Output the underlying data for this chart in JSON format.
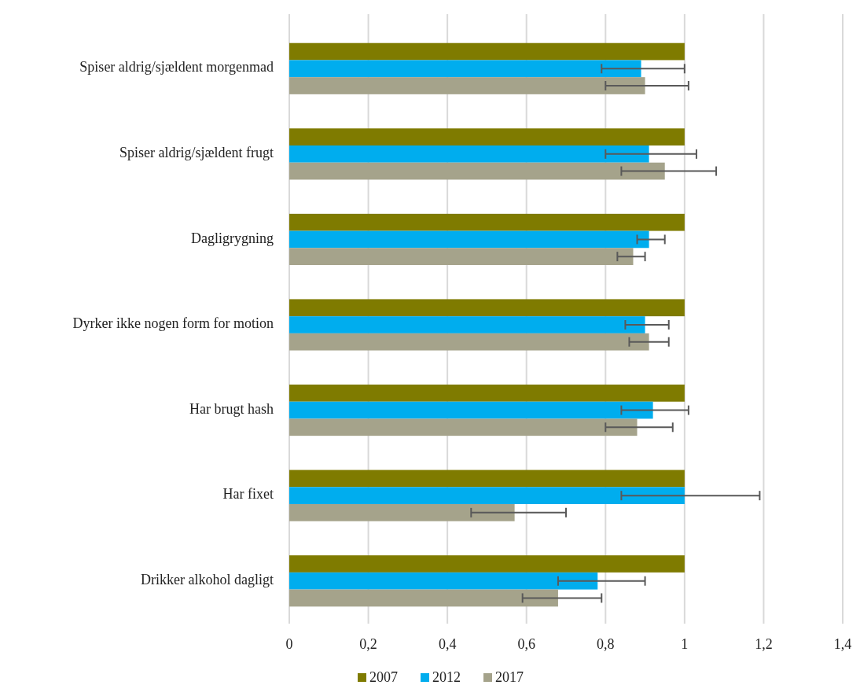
{
  "chart_data": {
    "type": "bar",
    "orientation": "horizontal",
    "categories": [
      "Spiser aldrig/sjældent morgenmad",
      "Spiser aldrig/sjældent frugt",
      "Dagligrygning",
      "Dyrker ikke nogen form for motion",
      "Har brugt hash",
      "Har fixet",
      "Drikker alkohol dagligt"
    ],
    "series": [
      {
        "name": "2007",
        "color": "#7f7b00",
        "values": [
          1,
          1,
          1,
          1,
          1,
          1,
          1
        ]
      },
      {
        "name": "2012",
        "color": "#00adee",
        "values": [
          0.89,
          0.91,
          0.91,
          0.9,
          0.92,
          1.0,
          0.78
        ],
        "errors": [
          [
            0.79,
            1.0
          ],
          [
            0.8,
            1.03
          ],
          [
            0.88,
            0.95
          ],
          [
            0.85,
            0.96
          ],
          [
            0.84,
            1.01
          ],
          [
            0.84,
            1.19
          ],
          [
            0.68,
            0.9
          ]
        ]
      },
      {
        "name": "2017",
        "color": "#a5a38b",
        "values": [
          0.9,
          0.95,
          0.87,
          0.91,
          0.88,
          0.57,
          0.68
        ],
        "errors": [
          [
            0.8,
            1.01
          ],
          [
            0.84,
            1.08
          ],
          [
            0.83,
            0.9
          ],
          [
            0.86,
            0.96
          ],
          [
            0.8,
            0.97
          ],
          [
            0.46,
            0.7
          ],
          [
            0.59,
            0.79
          ]
        ]
      }
    ],
    "xlim": [
      0,
      1.4
    ],
    "xticks": [
      {
        "value": 0,
        "label": "0"
      },
      {
        "value": 0.2,
        "label": "0,2"
      },
      {
        "value": 0.4,
        "label": "0,4"
      },
      {
        "value": 0.6,
        "label": "0,6"
      },
      {
        "value": 0.8,
        "label": "0,8"
      },
      {
        "value": 1,
        "label": "1"
      },
      {
        "value": 1.2,
        "label": "1,2"
      },
      {
        "value": 1.4,
        "label": "1,4"
      }
    ],
    "grid": "x",
    "legend": "bottom"
  }
}
